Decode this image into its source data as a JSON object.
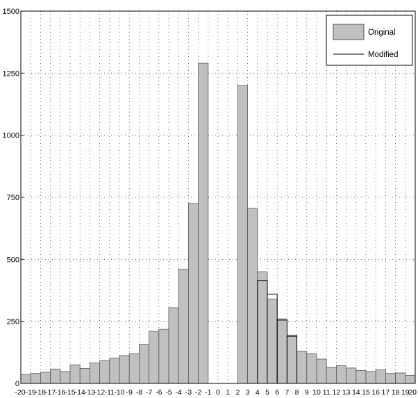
{
  "chart_data": {
    "type": "bar",
    "title": "",
    "xlabel": "",
    "ylabel": "",
    "ylim": [
      0,
      1500
    ],
    "xlim": [
      -20,
      20
    ],
    "yticks": [
      "0",
      "250",
      "500",
      "750",
      "1000",
      "1250",
      "1500"
    ],
    "xticks": [
      "-20",
      "-19",
      "-18",
      "-17",
      "-16",
      "-15",
      "-14",
      "-13",
      "-12",
      "-11",
      "-10",
      "-9",
      "-8",
      "-7",
      "-6",
      "-5",
      "-4",
      "-3",
      "-2",
      "-1",
      "0",
      "1",
      "2",
      "3",
      "4",
      "5",
      "6",
      "7",
      "8",
      "9",
      "10",
      "11",
      "12",
      "13",
      "14",
      "15",
      "16",
      "17",
      "18",
      "19",
      "20"
    ],
    "grid": true,
    "legend_position": "top-right",
    "categories": [
      -20,
      -19,
      -18,
      -17,
      -16,
      -15,
      -14,
      -13,
      -12,
      -11,
      -10,
      -9,
      -8,
      -7,
      -6,
      -5,
      -4,
      -3,
      -2,
      -1,
      0,
      1,
      2,
      3,
      4,
      5,
      6,
      7,
      8,
      9,
      10,
      11,
      12,
      13,
      14,
      15,
      16,
      17,
      18,
      19
    ],
    "series": [
      {
        "name": "Original",
        "style": "filled bars",
        "values": [
          35,
          40,
          45,
          58,
          48,
          75,
          60,
          82,
          92,
          102,
          112,
          120,
          158,
          210,
          218,
          305,
          460,
          725,
          1290,
          0,
          0,
          0,
          1200,
          705,
          450,
          340,
          260,
          195,
          130,
          120,
          98,
          65,
          72,
          62,
          52,
          48,
          55,
          40,
          42,
          32
        ]
      },
      {
        "name": "Modified",
        "style": "outline",
        "values": [
          35,
          40,
          45,
          58,
          48,
          75,
          60,
          82,
          92,
          102,
          112,
          120,
          158,
          210,
          218,
          305,
          460,
          725,
          1290,
          0,
          0,
          0,
          1200,
          705,
          415,
          360,
          255,
          190,
          130,
          120,
          98,
          65,
          72,
          62,
          52,
          48,
          55,
          40,
          42,
          32
        ]
      }
    ],
    "colors": {
      "bar_fill": "#c0c0c0",
      "bar_stroke": "#555555",
      "grid": "#444444",
      "modified_line": "#000000"
    }
  }
}
